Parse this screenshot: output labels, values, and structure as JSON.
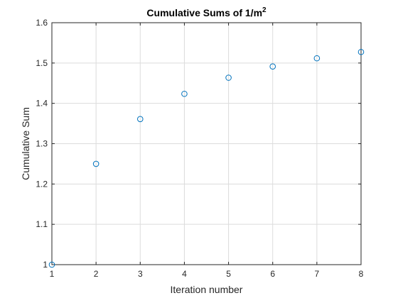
{
  "chart_data": {
    "type": "scatter",
    "title": "Cumulative Sums of 1/m",
    "title_superscript": "2",
    "xlabel": "Iteration number",
    "ylabel": "Cumulative Sum",
    "xlim": [
      1,
      8
    ],
    "ylim": [
      1,
      1.6
    ],
    "xticks": [
      "1",
      "2",
      "3",
      "4",
      "5",
      "6",
      "7",
      "8"
    ],
    "yticks": [
      "1",
      "1.1",
      "1.2",
      "1.3",
      "1.4",
      "1.5",
      "1.6"
    ],
    "grid": true,
    "marker": "circle",
    "marker_color": "#0072BD",
    "series": [
      {
        "x": [
          1,
          2,
          3,
          4,
          5,
          6,
          7,
          8
        ],
        "y": [
          1.0,
          1.25,
          1.3611,
          1.4236,
          1.4636,
          1.4914,
          1.5118,
          1.5274
        ]
      }
    ]
  }
}
